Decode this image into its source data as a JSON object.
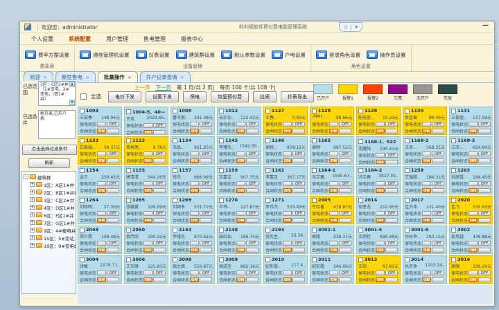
{
  "window": {
    "welcome": "欢迎您：administrator",
    "app_title": "科利福软件预付费电能管理系统",
    "pill_a": "◇",
    "pill_b": "▾",
    "minimize": "—",
    "tab_close": "×"
  },
  "menu_tabs": [
    {
      "label": "个人设置",
      "active": false
    },
    {
      "label": "系统配置",
      "active": true
    },
    {
      "label": "用户管理",
      "active": false
    },
    {
      "label": "售电管理",
      "active": false
    },
    {
      "label": "报表中心",
      "active": false
    }
  ],
  "ribbon": {
    "groups": [
      {
        "caption": "费率表",
        "buttons": [
          "费率方案设置"
        ]
      },
      {
        "caption": "设备管理",
        "buttons": [
          "通信管理机设置",
          "仪表设置",
          "建筑群设置",
          "默认参数设置",
          "户电设置"
        ]
      },
      {
        "caption": "角色设置",
        "buttons": [
          "登录角色设置",
          "操作员设置"
        ]
      }
    ]
  },
  "doc_tabs": [
    {
      "label": "欢迎",
      "active": false
    },
    {
      "label": "新型售电",
      "active": false
    },
    {
      "label": "批量操作",
      "active": true
    },
    {
      "label": "开户记录查询",
      "active": false
    }
  ],
  "sidebar": {
    "range_label": "已选范围",
    "range_text": "3区：C区2#井（1#变电、2#变电，/双1#井）",
    "cond_label": "已选条件",
    "cond_text": "新开表,已开户表.",
    "filter_button": "点击选择过滤条件",
    "refresh_button": "刷新",
    "up_glyph": "▲",
    "down_glyph": "▼",
    "expand_glyph": "+",
    "collapse_glyph": "-",
    "tree_root": "建筑群",
    "tree_items": [
      "1区：A区1#井",
      "2区：B区1#井(B区1#...",
      "3区：C区2#井（1#变...",
      "4区：D区1#井（D区1...",
      "6区：F区1#井（F区1#...",
      "7区：G区1#井",
      "9区：4#楼电井（4#楼...",
      "15区：5#变站（3#变...",
      "19区：9#变电站（2#..."
    ]
  },
  "toolbar": {
    "prev": "上一页",
    "next": "下一页",
    "page_info": "第 1 页/共 2 页|",
    "count_info": "每页 100 个/共 108 个|",
    "select_all": "全选",
    "buttons": [
      "电价下发",
      "设置下发",
      "保电",
      "恢复预付费",
      "拉闸",
      "抄表导出"
    ]
  },
  "legend": [
    {
      "label": "已开户",
      "color": "#b9dcea"
    },
    {
      "label": "报警1",
      "color": "#ffd401"
    },
    {
      "label": "报警2",
      "color": "#fe4002"
    },
    {
      "label": "欠费",
      "color": "#8d0f8d"
    },
    {
      "label": "未开户",
      "color": "#969696"
    },
    {
      "label": "失联",
      "color": "#2d4b47"
    }
  ],
  "card_labels": {
    "supply": "保电状态",
    "switch": "合闸状态",
    "on": "ON",
    "off": "OFF"
  },
  "cards": [
    {
      "n": "1003",
      "name": "王安春",
      "amt": "148.94元",
      "a": 0
    },
    {
      "n": "1004-5、40—",
      "name": "王英",
      "amt": "2029.66..",
      "a": 0
    },
    {
      "n": "1008",
      "name": "曹冯丽..",
      "amt": "331.08元",
      "a": 0
    },
    {
      "n": "1012",
      "name": "长实仪..",
      "amt": "122.42元",
      "a": 0
    },
    {
      "n": "1127",
      "name": "王春..",
      "amt": "5.83元",
      "a": 1
    },
    {
      "n": "1128",
      "name": "-MM(..",
      "amt": "88.86元",
      "a": 1
    },
    {
      "n": "1129",
      "name": "配电室..",
      "amt": "19.23元",
      "a": 1
    },
    {
      "n": "1130",
      "name": "佟金章",
      "amt": "99.49元",
      "a": 1
    },
    {
      "n": "1131",
      "name": "王筱茵..",
      "amt": "137.59元",
      "a": 0
    },
    {
      "n": "1132",
      "name": "石俊娟..",
      "amt": "36.37元",
      "a": 1
    },
    {
      "n": "1133",
      "name": "佟井亮..",
      "amt": "9.78元",
      "a": 1
    },
    {
      "n": "1134",
      "name": "韦品..",
      "amt": "921.83元",
      "a": 0
    },
    {
      "n": "1145",
      "name": "李瑾先..",
      "amt": "1542.30..",
      "a": 0
    },
    {
      "n": "1146",
      "name": "谢修..",
      "amt": "878.12元",
      "a": 0
    },
    {
      "n": "1165",
      "name": "谢刚",
      "amt": "687.52元",
      "a": 0
    },
    {
      "n": "1168-1、522",
      "name": "沈耀钱",
      "amt": "330.41元",
      "a": 0
    },
    {
      "n": "1168-2",
      "name": "汪浑-..",
      "amt": "568.35元",
      "a": 0
    },
    {
      "n": "1168-3",
      "name": "汪浑-..",
      "amt": "624.84元",
      "a": 0
    },
    {
      "n": "1154",
      "name": "金日",
      "amt": "209.45元",
      "a": 0
    },
    {
      "n": "1155",
      "name": "唐清清",
      "amt": "544.26元",
      "a": 0
    },
    {
      "n": "1157",
      "name": "钱杰",
      "amt": "686.99元",
      "a": 0
    },
    {
      "n": "1159",
      "name": "文嘉圭",
      "amt": "907.35元",
      "a": 0
    },
    {
      "n": "1161",
      "name": "李嘉冱",
      "amt": "367.17元",
      "a": 0
    },
    {
      "n": "1164-1",
      "name": "冯立春..",
      "amt": "1595.67..",
      "a": 0
    },
    {
      "n": "1164-2",
      "name": "冯立春",
      "amt": "3927.05..",
      "a": 0
    },
    {
      "n": "1258",
      "name": "王瑞丽..",
      "amt": "184.31元",
      "a": 0
    },
    {
      "n": "1263",
      "name": "杜丽雪..",
      "amt": "184.45元",
      "a": 0
    },
    {
      "n": "1264",
      "name": "刘晓明..",
      "amt": "57.30元",
      "a": 0
    },
    {
      "n": "1265",
      "name": "张媛媛",
      "amt": "199.09元",
      "a": 0
    },
    {
      "n": "1269",
      "name": "刘国争",
      "amt": "531.72元",
      "a": 0
    },
    {
      "n": "1270",
      "name": "王玮-..",
      "amt": "127.87元",
      "a": 0
    },
    {
      "n": "1271",
      "name": "李伟杰",
      "amt": "533.83元",
      "a": 0
    },
    {
      "n": "2005",
      "name": "牛红香",
      "amt": "478.87元",
      "a": 1
    },
    {
      "n": "2014",
      "name": "安思龙",
      "amt": "202.95元",
      "a": 0
    },
    {
      "n": "2017",
      "name": "佳大伟",
      "amt": "121.40元",
      "a": 0
    },
    {
      "n": "2020",
      "name": "佳飞",
      "amt": "155.93元",
      "a": 1
    },
    {
      "n": "2048",
      "name": "郑少霞",
      "amt": "108.48元",
      "a": 0
    },
    {
      "n": "2050",
      "name": "袁丙欣",
      "amt": "190.22元",
      "a": 0
    },
    {
      "n": "2144",
      "name": "李瑾先",
      "amt": "870.62元",
      "a": 0
    },
    {
      "n": "2148",
      "name": "田红仙",
      "amt": "186.74元",
      "a": 0
    },
    {
      "n": "2193",
      "name": "张先生..",
      "amt": "59.34..",
      "a": 0
    },
    {
      "n": "3001-1",
      "name": "高隆",
      "amt": "238.37元",
      "a": 0
    },
    {
      "n": "3001-5",
      "name": "王炳栓",
      "amt": "690.48元",
      "a": 0
    },
    {
      "n": "3001-6",
      "name": "孙长争..",
      "amt": "293.15元",
      "a": 0
    },
    {
      "n": "3002",
      "name": "俞风越",
      "amt": "439.88元",
      "a": 0
    },
    {
      "n": "3004",
      "name": "诗敏",
      "amt": "2278.71..",
      "a": 0
    },
    {
      "n": "3006",
      "name": "王东锋",
      "amt": "125.83元",
      "a": 0
    },
    {
      "n": "3008",
      "name": "周之茜",
      "amt": "550.97元",
      "a": 0
    },
    {
      "n": "3009",
      "name": "高成圭",
      "amt": "885.16元",
      "a": 0
    },
    {
      "n": "3010",
      "name": "纪彩霞..",
      "amt": "117.4..",
      "a": 0
    },
    {
      "n": "3011",
      "name": "纪彩霞",
      "amt": "346.06元",
      "a": 0
    },
    {
      "n": "3013",
      "name": "王欣..",
      "amt": "97.81元",
      "a": 1
    },
    {
      "n": "3014",
      "name": "仇杰争",
      "amt": "1103.54..",
      "a": 0
    },
    {
      "n": "3016",
      "name": "谢强",
      "amt": "339.29元",
      "a": 1
    }
  ]
}
